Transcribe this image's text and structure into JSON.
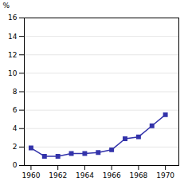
{
  "chart_data": {
    "type": "line",
    "x": [
      1960,
      1961,
      1962,
      1963,
      1964,
      1965,
      1966,
      1967,
      1968,
      1969,
      1970
    ],
    "values": [
      1.9,
      1.0,
      1.0,
      1.3,
      1.3,
      1.4,
      1.7,
      2.9,
      3.1,
      4.3,
      5.5
    ],
    "color": "#3333aa",
    "marker": "square",
    "ylabel": "%",
    "xlim": [
      1959.5,
      1971.0
    ],
    "xticks": [
      1960,
      1962,
      1964,
      1966,
      1968,
      1970
    ],
    "ylim": [
      0,
      16
    ],
    "yticks": [
      0,
      2,
      4,
      6,
      8,
      10,
      12,
      14,
      16
    ],
    "grid": true
  }
}
